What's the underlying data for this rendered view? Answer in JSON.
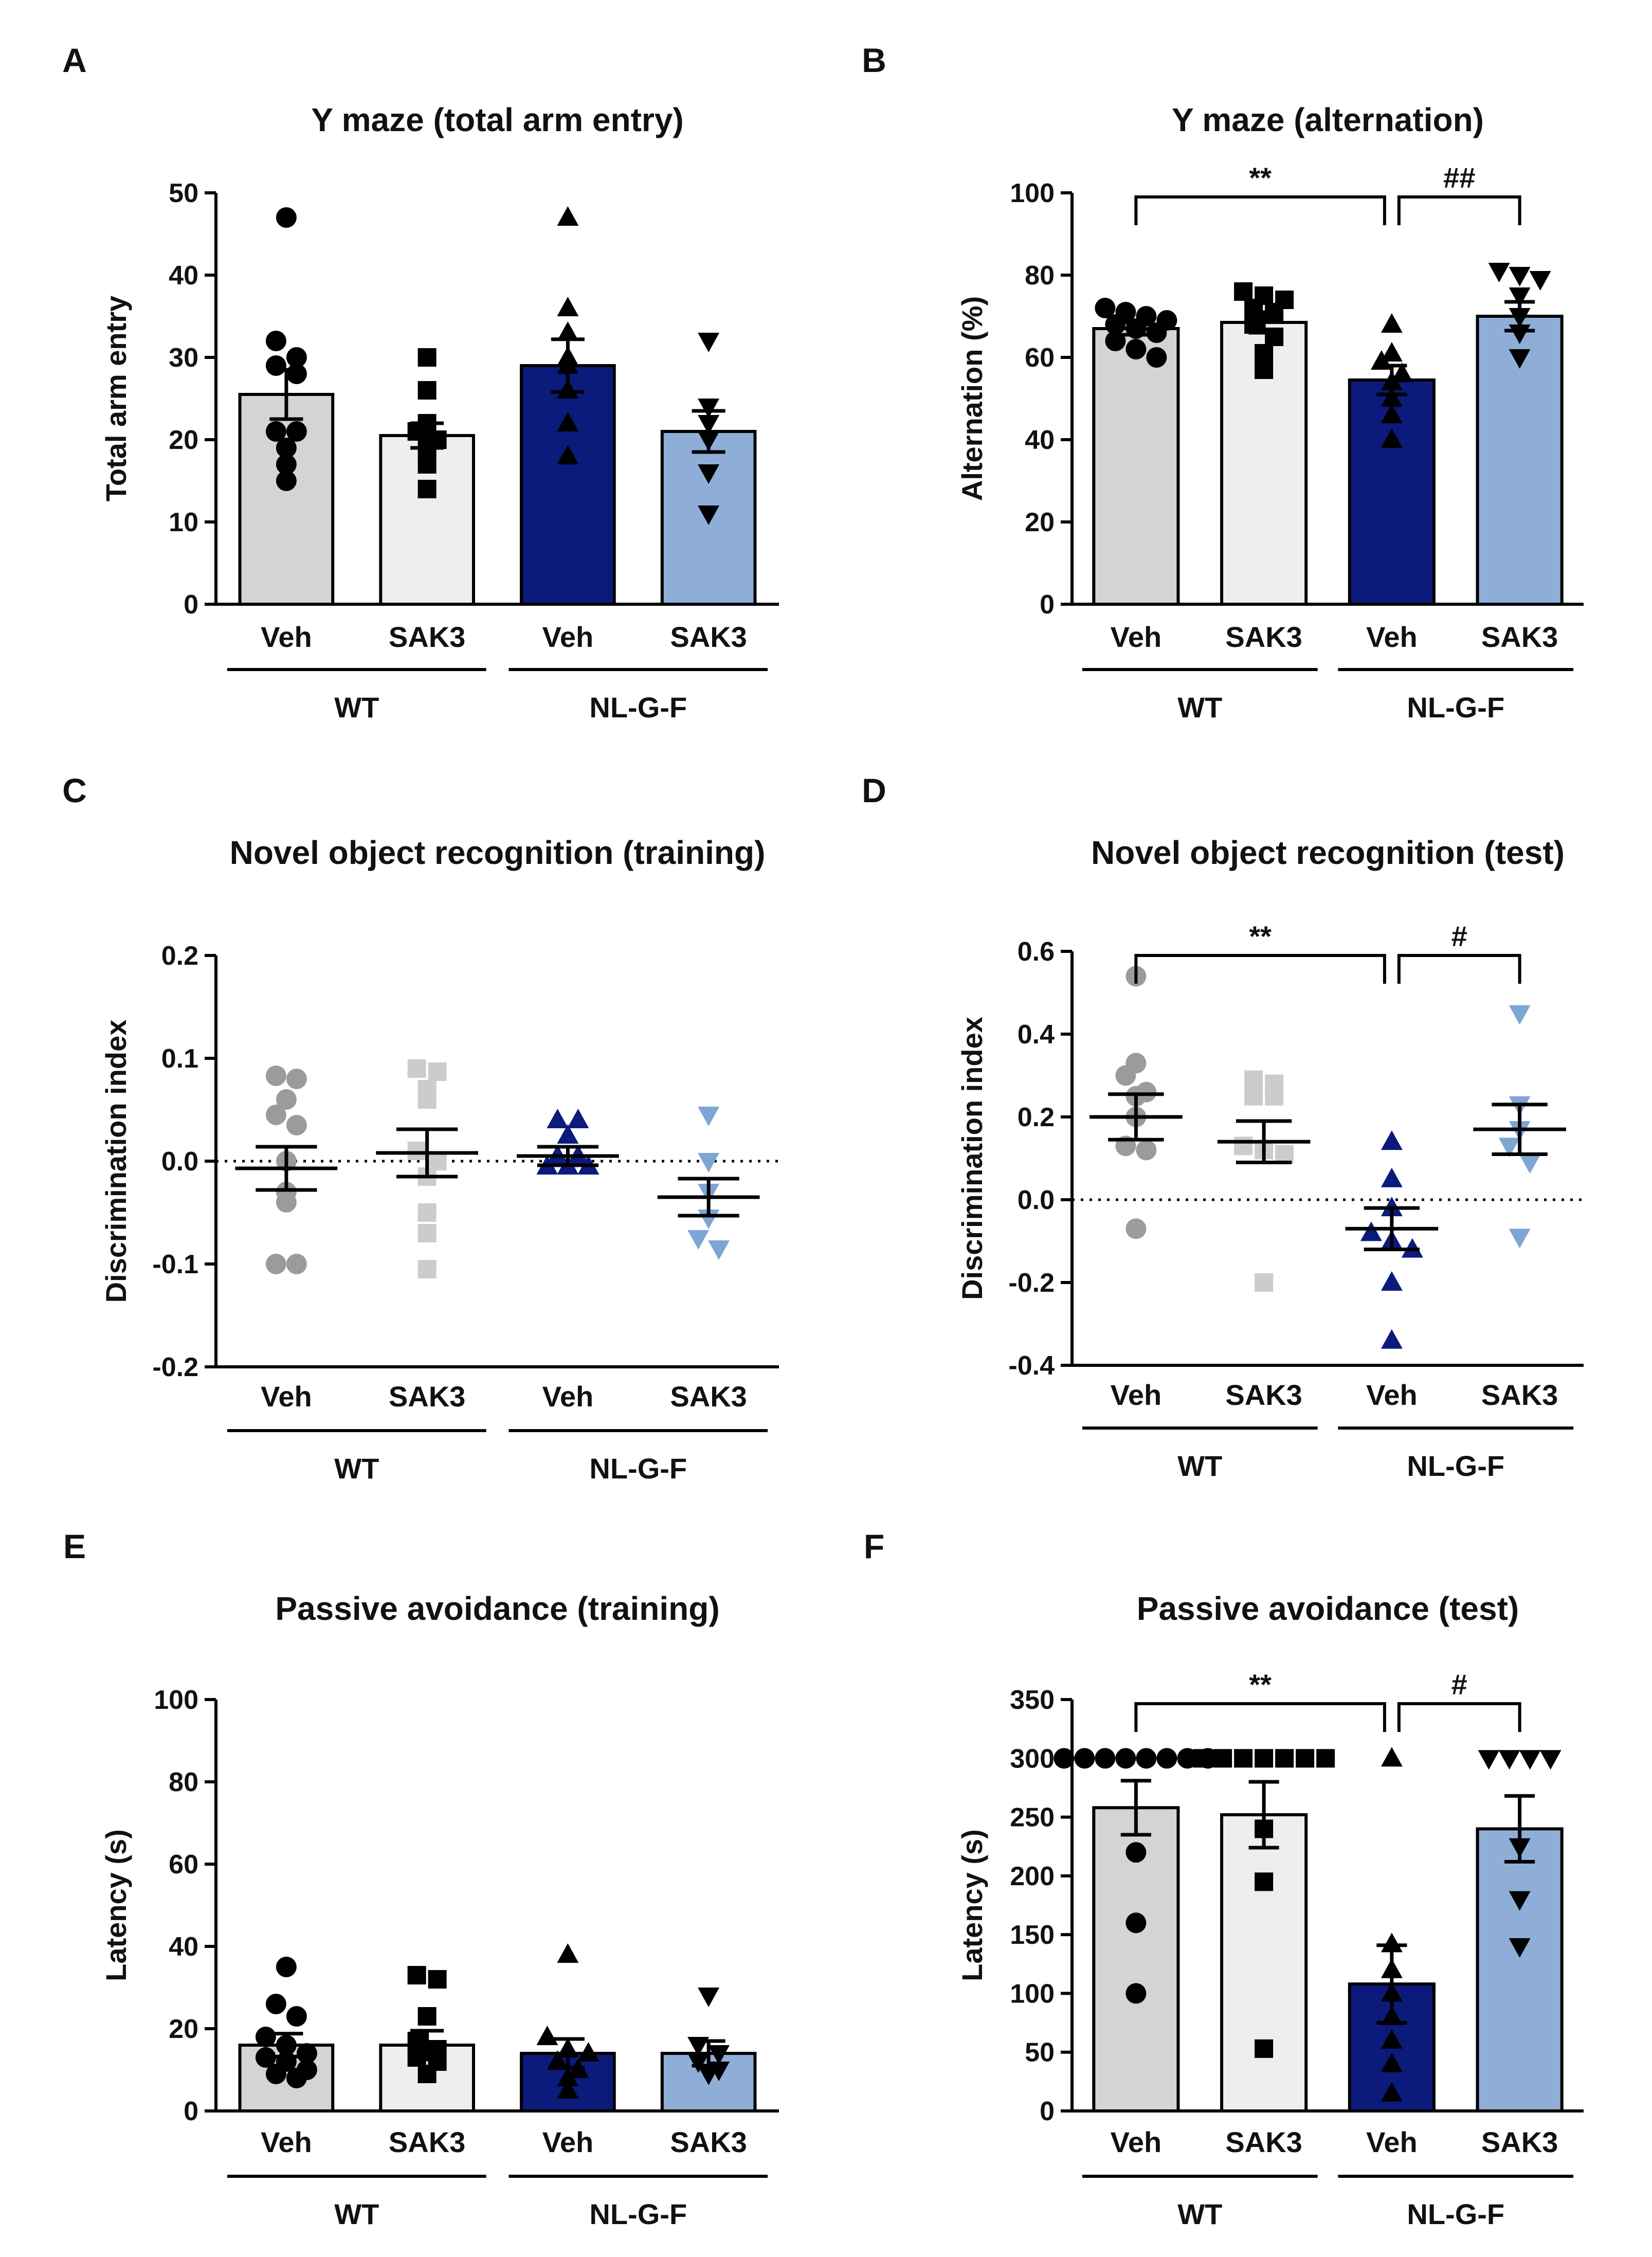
{
  "group_labels": {
    "wt": "WT",
    "nl": "NL-G-F"
  },
  "chart_data": [
    {
      "id": "A",
      "type": "bar",
      "panel_label": "A",
      "title": "Y maze (total arm entry)",
      "ylabel": "Total arm entry",
      "ylim": [
        0,
        50
      ],
      "yticks": [
        "0",
        "10",
        "20",
        "30",
        "40",
        "50"
      ],
      "categories": [
        "Veh",
        "SAK3",
        "Veh",
        "SAK3"
      ],
      "groups": [
        "WT",
        "NL-G-F"
      ],
      "series": [
        {
          "name": "WT Veh",
          "color": "#d4d4d4",
          "marker": "circle",
          "marker_color": "#000000",
          "mean": 25.5,
          "sem": 3.0,
          "points": [
            47,
            32,
            30,
            29,
            28,
            21,
            21,
            19,
            17,
            15
          ]
        },
        {
          "name": "WT SAK3",
          "color": "#eeeeee",
          "marker": "square",
          "marker_color": "#000000",
          "mean": 20.5,
          "sem": 1.5,
          "points": [
            30,
            26,
            22,
            21,
            20,
            19,
            17,
            14
          ]
        },
        {
          "name": "NL-G-F Veh",
          "color": "#0c1a7c",
          "marker": "triangle-up",
          "marker_color": "#000000",
          "mean": 29,
          "sem": 3.2,
          "points": [
            47,
            36,
            33,
            30,
            29,
            26,
            22,
            18
          ]
        },
        {
          "name": "NL-G-F SAK3",
          "color": "#8eaed8",
          "marker": "triangle-down",
          "marker_color": "#000000",
          "mean": 21,
          "sem": 2.5,
          "points": [
            32,
            24,
            22,
            20,
            16,
            11
          ]
        }
      ],
      "significance": [],
      "zero_line": false
    },
    {
      "id": "B",
      "type": "bar",
      "panel_label": "B",
      "title": "Y maze (alternation)",
      "ylabel": "Alternation (%)",
      "ylim": [
        0,
        100
      ],
      "yticks": [
        "0",
        "20",
        "40",
        "60",
        "80",
        "100"
      ],
      "categories": [
        "Veh",
        "SAK3",
        "Veh",
        "SAK3"
      ],
      "groups": [
        "WT",
        "NL-G-F"
      ],
      "series": [
        {
          "name": "WT Veh",
          "color": "#d4d4d4",
          "marker": "circle",
          "marker_color": "#000000",
          "mean": 67,
          "sem": 1.5,
          "points": [
            72,
            71,
            70,
            69,
            68,
            67,
            66,
            64,
            62,
            60
          ]
        },
        {
          "name": "WT SAK3",
          "color": "#eeeeee",
          "marker": "square",
          "marker_color": "#000000",
          "mean": 68.5,
          "sem": 2.5,
          "points": [
            76,
            75,
            74,
            72,
            71,
            68,
            65,
            61,
            57
          ]
        },
        {
          "name": "NL-G-F Veh",
          "color": "#0c1a7c",
          "marker": "triangle-up",
          "marker_color": "#000000",
          "mean": 54.5,
          "sem": 3.5,
          "points": [
            68,
            61,
            59,
            56,
            54,
            50,
            46,
            40
          ]
        },
        {
          "name": "NL-G-F SAK3",
          "color": "#8eaed8",
          "marker": "triangle-down",
          "marker_color": "#000000",
          "mean": 70,
          "sem": 3.5,
          "points": [
            81,
            80,
            79,
            75,
            70,
            66,
            60
          ]
        }
      ],
      "significance": [
        {
          "from": 0,
          "to": 2,
          "label": "**",
          "y": 100
        },
        {
          "from": 2,
          "to": 3,
          "label": "##",
          "y": 100
        }
      ],
      "zero_line": false
    },
    {
      "id": "C",
      "type": "scatter",
      "panel_label": "C",
      "title": "Novel object recognition (training)",
      "ylabel": "Discrimination index",
      "ylim": [
        -0.2,
        0.2
      ],
      "yticks": [
        "-0.2",
        "-0.1",
        "0.0",
        "0.1",
        "0.2"
      ],
      "categories": [
        "Veh",
        "SAK3",
        "Veh",
        "SAK3"
      ],
      "groups": [
        "WT",
        "NL-G-F"
      ],
      "series": [
        {
          "name": "WT Veh",
          "marker": "circle",
          "marker_color": "#9b9b9b",
          "mean": -0.007,
          "sem": 0.021,
          "points": [
            0.083,
            0.08,
            0.06,
            0.045,
            0.035,
            0.0,
            -0.03,
            -0.04,
            -0.1,
            -0.1
          ]
        },
        {
          "name": "WT SAK3",
          "marker": "square",
          "marker_color": "#cccccc",
          "mean": 0.008,
          "sem": 0.023,
          "points": [
            0.09,
            0.087,
            0.07,
            0.06,
            0.01,
            0.0,
            -0.015,
            -0.05,
            -0.07,
            -0.105
          ]
        },
        {
          "name": "NL-G-F Veh",
          "marker": "triangle-up",
          "marker_color": "#0c1a7c",
          "mean": 0.005,
          "sem": 0.009,
          "points": [
            0.04,
            0.04,
            0.025,
            0.005,
            0.005,
            -0.005,
            -0.005,
            -0.005
          ]
        },
        {
          "name": "NL-G-F SAK3",
          "marker": "triangle-down",
          "marker_color": "#7ea6d4",
          "mean": -0.035,
          "sem": 0.018,
          "points": [
            0.045,
            0.0,
            -0.03,
            -0.055,
            -0.075,
            -0.085
          ]
        }
      ],
      "significance": [],
      "zero_line": true
    },
    {
      "id": "D",
      "type": "scatter",
      "panel_label": "D",
      "title": "Novel object recognition (test)",
      "ylabel": "Discrimination index",
      "ylim": [
        -0.4,
        0.6
      ],
      "yticks": [
        "-0.4",
        "-0.2",
        "0.0",
        "0.2",
        "0.4",
        "0.6"
      ],
      "categories": [
        "Veh",
        "SAK3",
        "Veh",
        "SAK3"
      ],
      "groups": [
        "WT",
        "NL-G-F"
      ],
      "series": [
        {
          "name": "WT Veh",
          "marker": "circle",
          "marker_color": "#9b9b9b",
          "mean": 0.2,
          "sem": 0.055,
          "points": [
            0.54,
            0.33,
            0.3,
            0.26,
            0.25,
            0.2,
            0.13,
            0.12,
            -0.07
          ]
        },
        {
          "name": "WT SAK3",
          "marker": "square",
          "marker_color": "#cccccc",
          "mean": 0.14,
          "sem": 0.05,
          "points": [
            0.29,
            0.28,
            0.25,
            0.25,
            0.13,
            0.12,
            0.11,
            -0.2
          ]
        },
        {
          "name": "NL-G-F Veh",
          "marker": "triangle-up",
          "marker_color": "#0c1a7c",
          "mean": -0.07,
          "sem": 0.05,
          "points": [
            0.14,
            0.05,
            -0.02,
            -0.08,
            -0.1,
            -0.12,
            -0.2,
            -0.34
          ]
        },
        {
          "name": "NL-G-F SAK3",
          "marker": "triangle-down",
          "marker_color": "#7ea6d4",
          "mean": 0.17,
          "sem": 0.06,
          "points": [
            0.45,
            0.23,
            0.17,
            0.13,
            0.09,
            -0.09
          ]
        }
      ],
      "significance": [
        {
          "from": 0,
          "to": 2,
          "label": "**",
          "y": 0.6
        },
        {
          "from": 2,
          "to": 3,
          "label": "#",
          "y": 0.6
        }
      ],
      "zero_line": true
    },
    {
      "id": "E",
      "type": "bar",
      "panel_label": "E",
      "title": "Passive avoidance (training)",
      "ylabel": "Latency (s)",
      "ylim": [
        0,
        100
      ],
      "yticks": [
        "0",
        "20",
        "40",
        "60",
        "80",
        "100"
      ],
      "categories": [
        "Veh",
        "SAK3",
        "Veh",
        "SAK3"
      ],
      "groups": [
        "WT",
        "NL-G-F"
      ],
      "series": [
        {
          "name": "WT Veh",
          "color": "#d4d4d4",
          "marker": "circle",
          "marker_color": "#000000",
          "mean": 16,
          "sem": 2.8,
          "points": [
            35,
            26,
            23,
            18,
            16,
            14,
            13,
            12,
            10,
            9,
            8
          ]
        },
        {
          "name": "WT SAK3",
          "color": "#eeeeee",
          "marker": "square",
          "marker_color": "#000000",
          "mean": 16,
          "sem": 3.5,
          "points": [
            33,
            32,
            23,
            17,
            15,
            13,
            12,
            9
          ]
        },
        {
          "name": "NL-G-F Veh",
          "color": "#0c1a7c",
          "marker": "triangle-up",
          "marker_color": "#000000",
          "mean": 14,
          "sem": 3.5,
          "points": [
            38,
            18,
            15,
            14,
            12,
            10,
            8,
            5
          ]
        },
        {
          "name": "NL-G-F SAK3",
          "color": "#8eaed8",
          "marker": "triangle-down",
          "marker_color": "#000000",
          "mean": 14,
          "sem": 3.0,
          "points": [
            28,
            16,
            14,
            12,
            10,
            9
          ]
        }
      ],
      "significance": [],
      "zero_line": false
    },
    {
      "id": "F",
      "type": "bar",
      "panel_label": "F",
      "title": "Passive avoidance (test)",
      "ylabel": "Latency (s)",
      "ylim": [
        0,
        350
      ],
      "yticks": [
        "0",
        "50",
        "100",
        "150",
        "200",
        "250",
        "300",
        "350"
      ],
      "categories": [
        "Veh",
        "SAK3",
        "Veh",
        "SAK3"
      ],
      "groups": [
        "WT",
        "NL-G-F"
      ],
      "series": [
        {
          "name": "WT Veh",
          "color": "#d4d4d4",
          "marker": "circle",
          "marker_color": "#000000",
          "mean": 258,
          "sem": 23,
          "points": [
            300,
            300,
            300,
            300,
            300,
            300,
            300,
            300,
            220,
            160,
            100
          ]
        },
        {
          "name": "WT SAK3",
          "color": "#eeeeee",
          "marker": "square",
          "marker_color": "#000000",
          "mean": 252,
          "sem": 28,
          "points": [
            300,
            300,
            300,
            300,
            300,
            300,
            300,
            240,
            195,
            53
          ]
        },
        {
          "name": "NL-G-F Veh",
          "color": "#0c1a7c",
          "marker": "triangle-up",
          "marker_color": "#000000",
          "mean": 108,
          "sem": 33,
          "points": [
            300,
            142,
            120,
            100,
            80,
            60,
            40,
            15
          ]
        },
        {
          "name": "NL-G-F SAK3",
          "color": "#8eaed8",
          "marker": "triangle-down",
          "marker_color": "#000000",
          "mean": 240,
          "sem": 28,
          "points": [
            300,
            300,
            300,
            300,
            225,
            180,
            140
          ]
        }
      ],
      "significance": [
        {
          "from": 0,
          "to": 2,
          "label": "**",
          "y": 350
        },
        {
          "from": 2,
          "to": 3,
          "label": "#",
          "y": 350
        }
      ],
      "zero_line": false
    }
  ]
}
